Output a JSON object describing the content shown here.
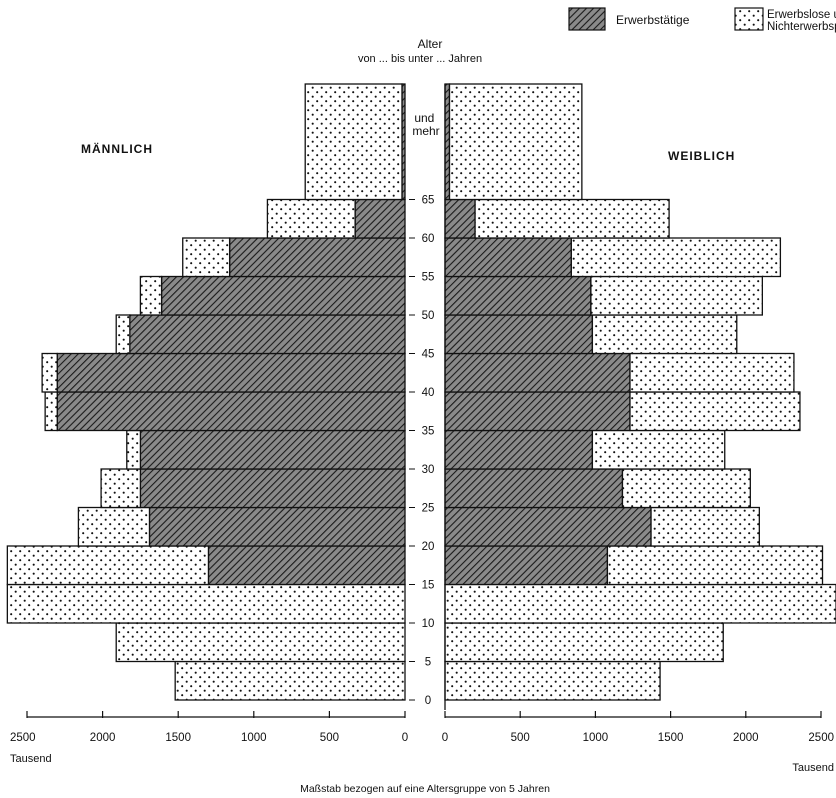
{
  "chart_data": {
    "type": "bar",
    "layout": "population-pyramid",
    "legend": {
      "placement": "top-right",
      "entries": [
        {
          "key": "employed",
          "label": "Erwerbstätige",
          "pattern": "hatched"
        },
        {
          "key": "not_employed",
          "label": "Erwerbslose u. Nichterwerbspersonen",
          "label_lines": [
            "Erwerbslose u.",
            "Nichterwerbspersonen"
          ],
          "pattern": "dotted"
        }
      ]
    },
    "center_axis": {
      "title_lines": [
        "Alter",
        "von ... bis unter ... Jahren"
      ],
      "tick_labels": [
        "0",
        "5",
        "10",
        "15",
        "20",
        "25",
        "30",
        "35",
        "40",
        "45",
        "50",
        "55",
        "60",
        "65"
      ],
      "open_group_label_lines": [
        "und",
        "mehr"
      ]
    },
    "sides": {
      "male": {
        "label": "MÄNNLICH"
      },
      "female": {
        "label": "WEIBLICH"
      }
    },
    "age_groups": [
      "0-5",
      "5-10",
      "10-15",
      "15-20",
      "20-25",
      "25-30",
      "30-35",
      "35-40",
      "40-45",
      "45-50",
      "50-55",
      "55-60",
      "60-65",
      "65 und mehr"
    ],
    "male": {
      "employed": [
        0,
        0,
        0,
        1300,
        1690,
        1750,
        1750,
        2300,
        2300,
        1820,
        1610,
        1160,
        330,
        20
      ],
      "not_employed": [
        1520,
        1910,
        2630,
        1330,
        470,
        260,
        90,
        80,
        100,
        90,
        140,
        310,
        580,
        640
      ]
    },
    "female": {
      "employed": [
        0,
        0,
        0,
        1080,
        1370,
        1180,
        980,
        1230,
        1230,
        980,
        970,
        840,
        200,
        30
      ],
      "not_employed": [
        1430,
        1850,
        2600,
        1430,
        720,
        850,
        880,
        1130,
        1090,
        960,
        1140,
        1390,
        1290,
        880
      ]
    },
    "x_axis": {
      "ticks": [
        2500,
        2000,
        1500,
        1000,
        500,
        0
      ],
      "tick_labels": [
        "2500",
        "2000",
        "1500",
        "1000",
        "500",
        "0"
      ],
      "unit_label": "Tausend",
      "range": [
        0,
        2500
      ]
    },
    "footnote": "Maßstab bezogen auf eine Altersgruppe von 5 Jahren"
  }
}
